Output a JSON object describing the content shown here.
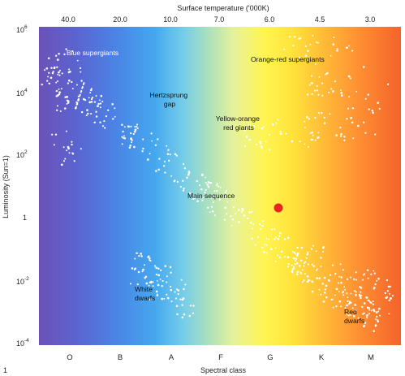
{
  "figure_number": "1",
  "top_axis": {
    "title": "Surface temperature ('000K)",
    "ticks": [
      "40.0",
      "20.0",
      "10.0",
      "7.0",
      "6.0",
      "4.5",
      "3.0"
    ]
  },
  "y_axis": {
    "label": "Luminosity (Sun=1)",
    "ticks": [
      {
        "base": "10",
        "exp": "6"
      },
      {
        "base": "10",
        "exp": "4"
      },
      {
        "base": "10",
        "exp": "2"
      },
      {
        "base": "1",
        "exp": ""
      },
      {
        "base": "10",
        "exp": "-2"
      },
      {
        "base": "10",
        "exp": "-4"
      }
    ]
  },
  "x_axis": {
    "label": "Spectral class",
    "ticks": [
      "O",
      "B",
      "A",
      "F",
      "G",
      "K",
      "M"
    ]
  },
  "regions": {
    "blue_supergiants": [
      "Blue supergiants"
    ],
    "orange_red_supergiants": [
      "Orange-red supergiants"
    ],
    "hertzsprung_gap": [
      "Hertzsprung",
      "gap"
    ],
    "yellow_orange_giants": [
      "Yellow-orange",
      "red giants"
    ],
    "main_sequence": [
      "Main sequence"
    ],
    "white_dwarfs": [
      "White",
      "dwarfs"
    ],
    "red_dwarfs": [
      "Red",
      "dwarfs"
    ]
  },
  "sun_marker_color": "#e8251c",
  "spectrum_colors": [
    "#6d52b8",
    "#5a66d0",
    "#4a86e6",
    "#4fb0f0",
    "#7fd0e8",
    "#b8e6b0",
    "#e8f090",
    "#fff350",
    "#ffe23a",
    "#ffb43a",
    "#ff8a33",
    "#f76a2a"
  ]
}
